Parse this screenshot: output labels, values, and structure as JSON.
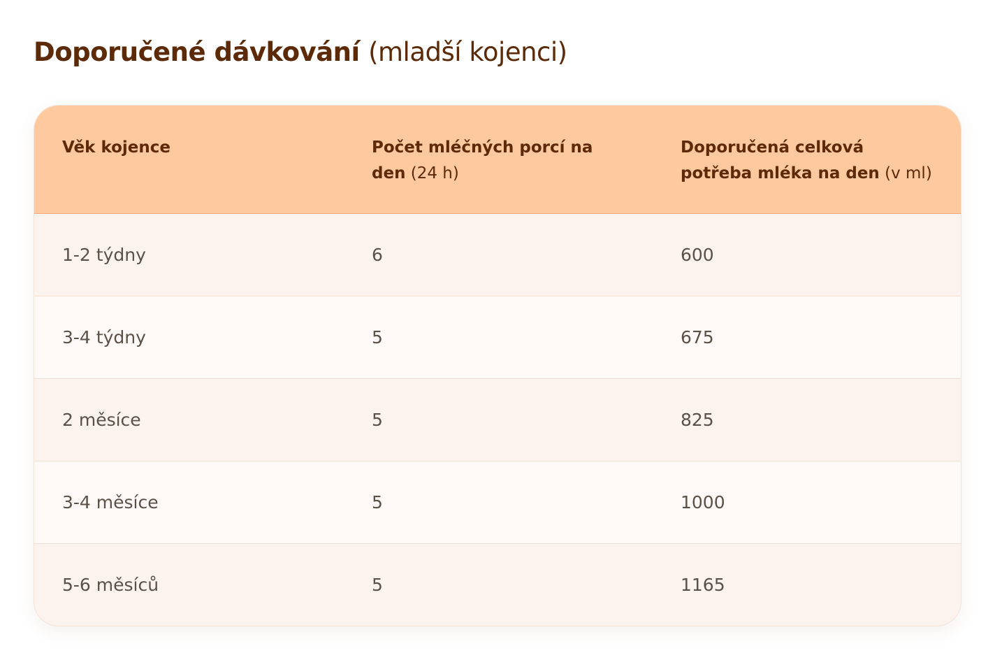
{
  "title": {
    "strong": "Doporučené dávkování",
    "light": "(mladší kojenci)"
  },
  "table": {
    "headers": [
      {
        "strong_line1": "Věk kojence",
        "strong_line2": "",
        "light": ""
      },
      {
        "strong_line1": "Počet mléčných porcí na",
        "strong_line2": "den",
        "light": "(24 h)"
      },
      {
        "strong_line1": "Doporučená celková",
        "strong_line2": "potřeba mléka na den",
        "light": "(v ml)"
      }
    ],
    "rows": [
      {
        "age": "1-2 týdny",
        "portions": "6",
        "ml": "600"
      },
      {
        "age": "3-4 týdny",
        "portions": "5",
        "ml": "675"
      },
      {
        "age": "2 měsíce",
        "portions": "5",
        "ml": "825"
      },
      {
        "age": "3-4 měsíce",
        "portions": "5",
        "ml": "1000"
      },
      {
        "age": "5-6 měsíců",
        "portions": "5",
        "ml": "1165"
      }
    ]
  },
  "colors": {
    "title": "#5c2a06",
    "header_bg": "#ffc9a0",
    "row_odd_bg": "#fdf3ee",
    "row_even_bg": "#fffaf7",
    "body_text": "#5a5048"
  }
}
